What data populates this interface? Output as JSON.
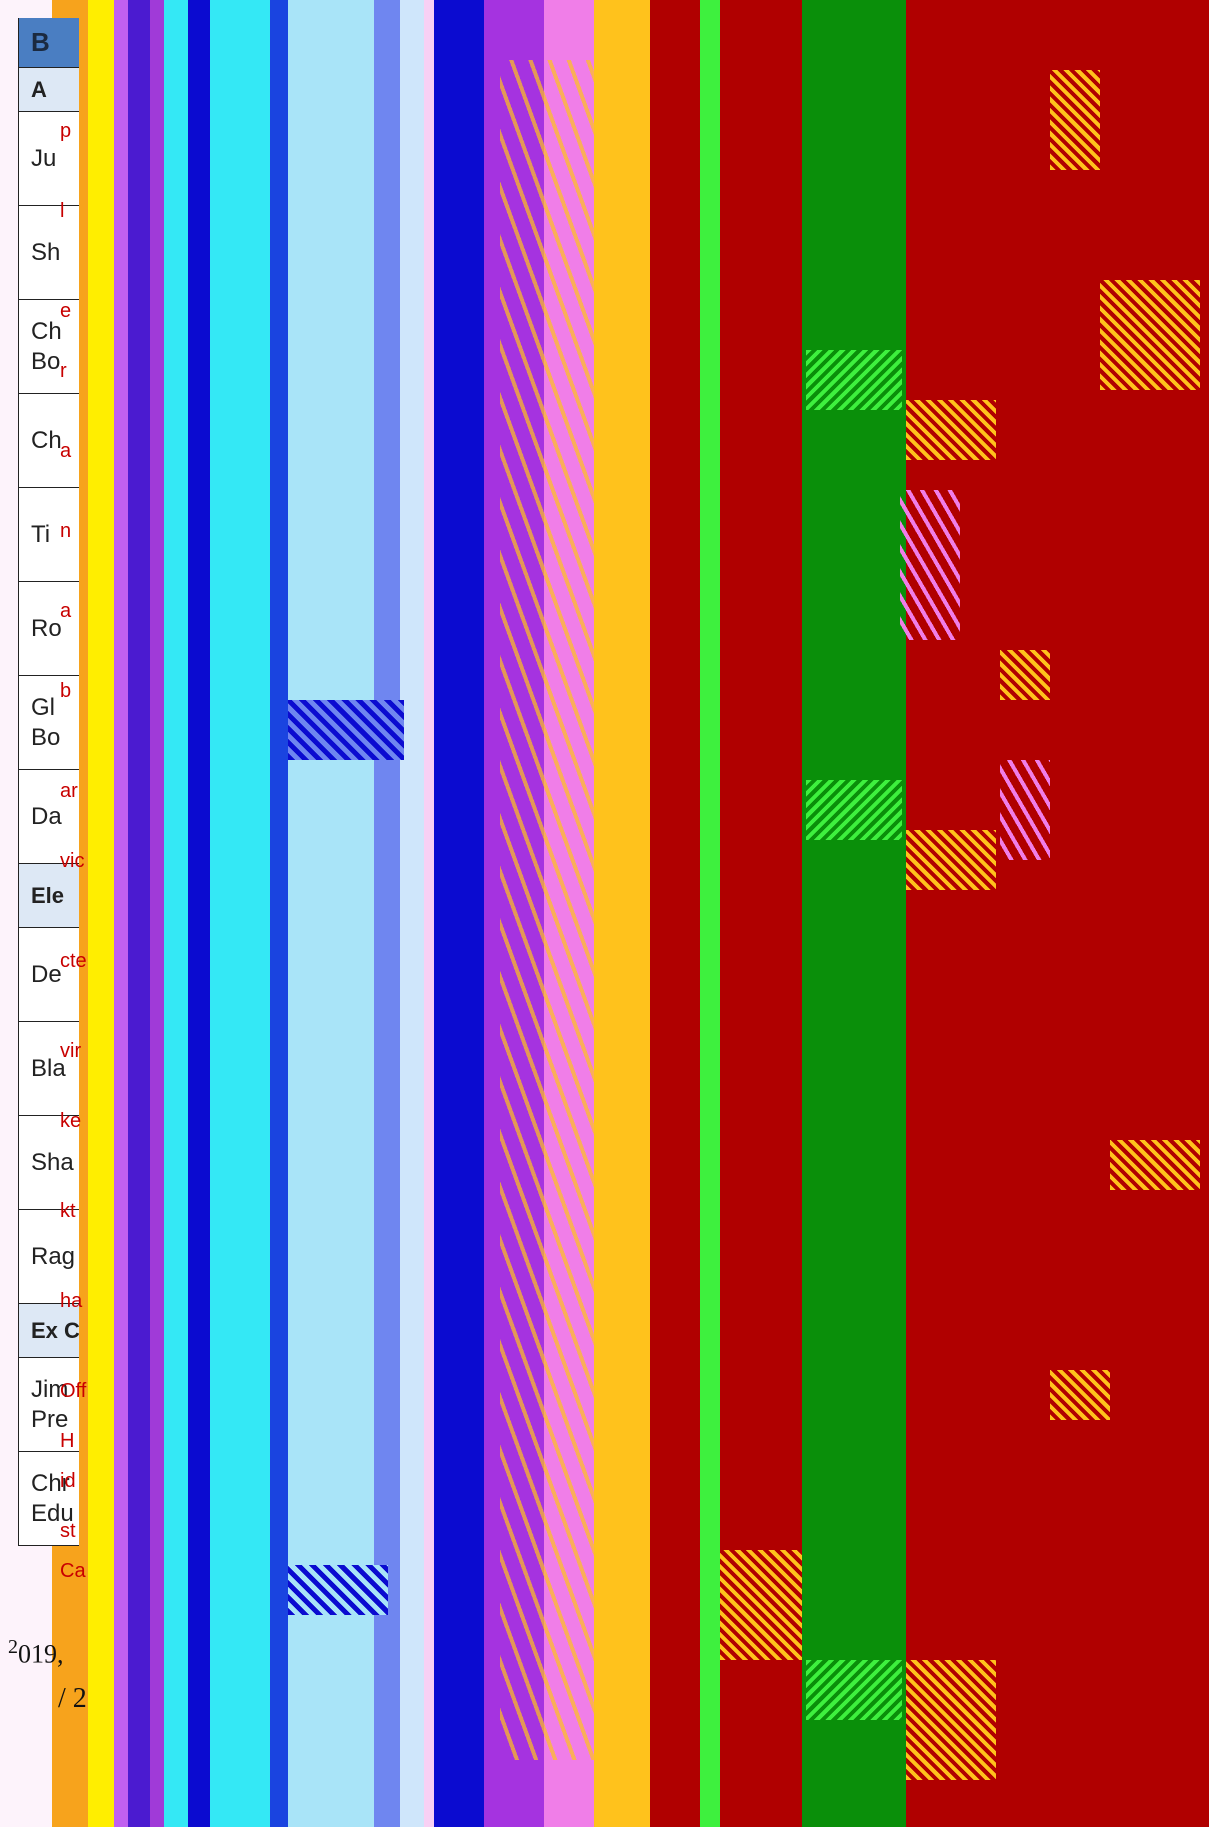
{
  "table": {
    "rows": [
      {
        "lines": [
          "B"
        ],
        "kind": "title",
        "h": 50
      },
      {
        "lines": [
          "A"
        ],
        "kind": "head",
        "h": 44
      },
      {
        "lines": [
          "Ju"
        ],
        "kind": "row",
        "h": 94
      },
      {
        "lines": [
          "Sh"
        ],
        "kind": "row",
        "h": 94
      },
      {
        "lines": [
          "Ch",
          "Bo"
        ],
        "kind": "two",
        "h": 94
      },
      {
        "lines": [
          "Ch"
        ],
        "kind": "row",
        "h": 94
      },
      {
        "lines": [
          "Ti"
        ],
        "kind": "row",
        "h": 94
      },
      {
        "lines": [
          "Ro"
        ],
        "kind": "row",
        "h": 94
      },
      {
        "lines": [
          "Gl",
          "Bo"
        ],
        "kind": "two",
        "h": 94
      },
      {
        "lines": [
          "Da"
        ],
        "kind": "row",
        "h": 94
      },
      {
        "lines": [
          "Ele"
        ],
        "kind": "head",
        "h": 64
      },
      {
        "lines": [
          "De"
        ],
        "kind": "row",
        "h": 94
      },
      {
        "lines": [
          "Bla"
        ],
        "kind": "row",
        "h": 94
      },
      {
        "lines": [
          "Sha"
        ],
        "kind": "row",
        "h": 94
      },
      {
        "lines": [
          "Rag"
        ],
        "kind": "row",
        "h": 94
      },
      {
        "lines": [
          "Ex C"
        ],
        "kind": "head",
        "h": 54
      },
      {
        "lines": [
          "Jim",
          "Pre"
        ],
        "kind": "two",
        "h": 94
      },
      {
        "lines": [
          "Chr",
          "Edu"
        ],
        "kind": "two",
        "h": 94
      }
    ]
  },
  "snippets": [
    "p",
    "l",
    "e",
    "r",
    "a",
    "n",
    "a",
    "b",
    "ar",
    "vic",
    "cte",
    "vir",
    "ke",
    "kt",
    "ha",
    "Off",
    "H",
    "id",
    "st",
    "Ca"
  ],
  "footer": {
    "date_prefix": "2",
    "date_rest": "019,",
    "page": "/ 2"
  },
  "colors": {
    "orange": "#f7a31c",
    "yellow": "#ffee00",
    "purple": "#7a2be0",
    "indigo": "#4b1bd0",
    "violet": "#a03ad8",
    "cyan": "#34e8f5",
    "lightblue": "#a9e4f8",
    "royal": "#1a44e0",
    "navy": "#0b0bd0",
    "periwinkle": "#6f86f0",
    "paleblue": "#cfe6fb",
    "magenta": "#a533e0",
    "pink": "#f07ee8",
    "gold": "#ffc21c",
    "red": "#b00000",
    "green": "#0a8f0a",
    "lime": "#3ef03e"
  }
}
